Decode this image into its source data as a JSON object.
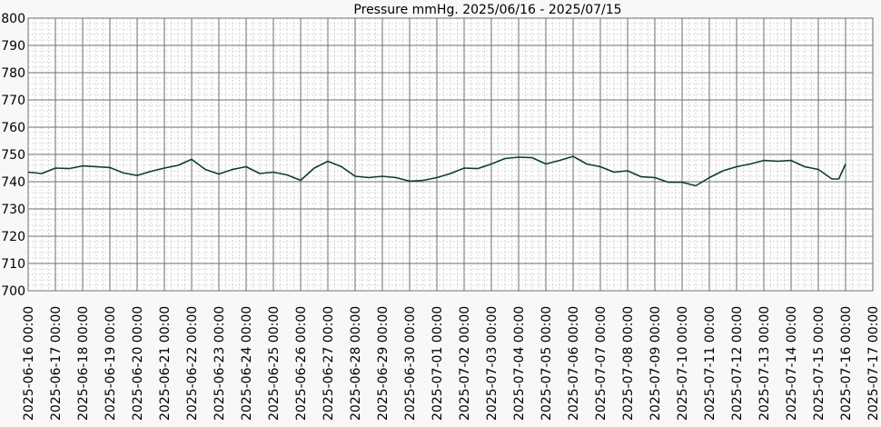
{
  "chart_data": {
    "type": "line",
    "title": "Pressure mmHg. 2025/06/16 - 2025/07/15",
    "xlabel": "",
    "ylabel": "",
    "ylim": [
      700,
      800
    ],
    "y_ticks": [
      700,
      710,
      720,
      730,
      740,
      750,
      760,
      770,
      780,
      790,
      800
    ],
    "x_range": [
      "2025-06-16 00:00",
      "2025-07-17 00:00"
    ],
    "x_ticks": [
      "2025-06-16 00:00",
      "2025-06-17 00:00",
      "2025-06-18 00:00",
      "2025-06-19 00:00",
      "2025-06-20 00:00",
      "2025-06-21 00:00",
      "2025-06-22 00:00",
      "2025-06-23 00:00",
      "2025-06-24 00:00",
      "2025-06-25 00:00",
      "2025-06-26 00:00",
      "2025-06-27 00:00",
      "2025-06-28 00:00",
      "2025-06-29 00:00",
      "2025-06-30 00:00",
      "2025-07-01 00:00",
      "2025-07-02 00:00",
      "2025-07-03 00:00",
      "2025-07-04 00:00",
      "2025-07-05 00:00",
      "2025-07-06 00:00",
      "2025-07-07 00:00",
      "2025-07-08 00:00",
      "2025-07-09 00:00",
      "2025-07-10 00:00",
      "2025-07-11 00:00",
      "2025-07-12 00:00",
      "2025-07-13 00:00",
      "2025-07-14 00:00",
      "2025-07-15 00:00",
      "2025-07-16 00:00",
      "2025-07-17 00:00"
    ],
    "grid": true,
    "colors": {
      "line": "#0b3b3b",
      "grid_major": "#6e6e6e",
      "grid_minor": "#d4d4d4",
      "plot_bg": "#ffffff"
    },
    "series": [
      {
        "x": [
          "2025-06-16 00:00",
          "2025-06-16 12:00",
          "2025-06-17 00:00",
          "2025-06-17 12:00",
          "2025-06-18 00:00",
          "2025-06-18 12:00",
          "2025-06-19 00:00",
          "2025-06-19 12:00",
          "2025-06-20 00:00",
          "2025-06-20 12:00",
          "2025-06-21 00:00",
          "2025-06-21 12:00",
          "2025-06-22 00:00",
          "2025-06-22 12:00",
          "2025-06-23 00:00",
          "2025-06-23 12:00",
          "2025-06-24 00:00",
          "2025-06-24 12:00",
          "2025-06-25 00:00",
          "2025-06-25 12:00",
          "2025-06-26 00:00",
          "2025-06-26 12:00",
          "2025-06-27 00:00",
          "2025-06-27 12:00",
          "2025-06-28 00:00",
          "2025-06-28 12:00",
          "2025-06-29 00:00",
          "2025-06-29 12:00",
          "2025-06-30 00:00",
          "2025-06-30 12:00",
          "2025-07-01 00:00",
          "2025-07-01 12:00",
          "2025-07-02 00:00",
          "2025-07-02 12:00",
          "2025-07-03 00:00",
          "2025-07-03 12:00",
          "2025-07-04 00:00",
          "2025-07-04 12:00",
          "2025-07-05 00:00",
          "2025-07-05 12:00",
          "2025-07-06 00:00",
          "2025-07-06 12:00",
          "2025-07-07 00:00",
          "2025-07-07 12:00",
          "2025-07-08 00:00",
          "2025-07-08 12:00",
          "2025-07-09 00:00",
          "2025-07-09 12:00",
          "2025-07-10 00:00",
          "2025-07-10 12:00",
          "2025-07-11 00:00",
          "2025-07-11 12:00",
          "2025-07-12 00:00",
          "2025-07-12 12:00",
          "2025-07-13 00:00",
          "2025-07-13 12:00",
          "2025-07-14 00:00",
          "2025-07-14 12:00",
          "2025-07-15 00:00",
          "2025-07-15 12:00",
          "2025-07-15 18:00",
          "2025-07-16 00:00"
        ],
        "y": [
          743.5,
          743.0,
          745.0,
          744.8,
          745.8,
          745.5,
          745.2,
          743.2,
          742.3,
          743.8,
          745.0,
          746.0,
          748.2,
          744.5,
          742.8,
          744.5,
          745.5,
          743.0,
          743.5,
          742.5,
          740.5,
          745.0,
          747.5,
          745.5,
          742.0,
          741.5,
          742.0,
          741.5,
          740.2,
          740.5,
          741.5,
          743.0,
          745.0,
          744.8,
          746.5,
          748.5,
          749.0,
          748.8,
          746.5,
          747.8,
          749.3,
          746.5,
          745.5,
          743.5,
          744.0,
          741.8,
          741.5,
          739.8,
          739.8,
          738.5,
          741.5,
          744.0,
          745.5,
          746.5,
          747.8,
          747.5,
          747.8,
          745.5,
          744.5,
          741.0,
          741.0,
          746.5
        ]
      }
    ]
  }
}
